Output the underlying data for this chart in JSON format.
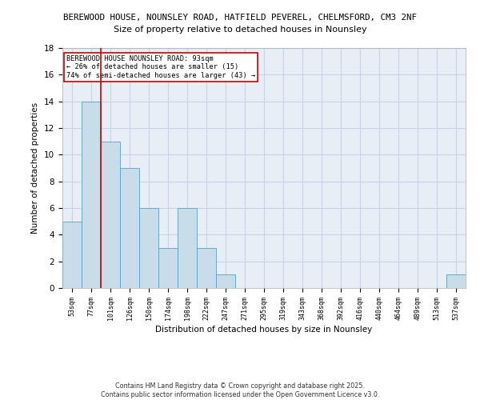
{
  "title_line1": "BEREWOOD HOUSE, NOUNSLEY ROAD, HATFIELD PEVEREL, CHELMSFORD, CM3 2NF",
  "title_line2": "Size of property relative to detached houses in Nounsley",
  "xlabel": "Distribution of detached houses by size in Nounsley",
  "ylabel": "Number of detached properties",
  "categories": [
    "53sqm",
    "77sqm",
    "101sqm",
    "126sqm",
    "150sqm",
    "174sqm",
    "198sqm",
    "222sqm",
    "247sqm",
    "271sqm",
    "295sqm",
    "319sqm",
    "343sqm",
    "368sqm",
    "392sqm",
    "416sqm",
    "440sqm",
    "464sqm",
    "489sqm",
    "513sqm",
    "537sqm"
  ],
  "values": [
    5,
    14,
    11,
    9,
    6,
    3,
    6,
    3,
    1,
    0,
    0,
    0,
    0,
    0,
    0,
    0,
    0,
    0,
    0,
    0,
    1
  ],
  "bar_color": "#c9dcea",
  "bar_edge_color": "#5a9fc4",
  "vline_color": "#cc0000",
  "annotation_text": "BEREWOOD HOUSE NOUNSLEY ROAD: 93sqm\n← 26% of detached houses are smaller (15)\n74% of semi-detached houses are larger (43) →",
  "annotation_box_color": "#ffffff",
  "annotation_box_edge": "#cc0000",
  "ylim": [
    0,
    18
  ],
  "yticks": [
    0,
    2,
    4,
    6,
    8,
    10,
    12,
    14,
    16,
    18
  ],
  "grid_color": "#c8d4e4",
  "footer_text": "Contains HM Land Registry data © Crown copyright and database right 2025.\nContains public sector information licensed under the Open Government Licence v3.0.",
  "bg_color": "#e8eef6"
}
